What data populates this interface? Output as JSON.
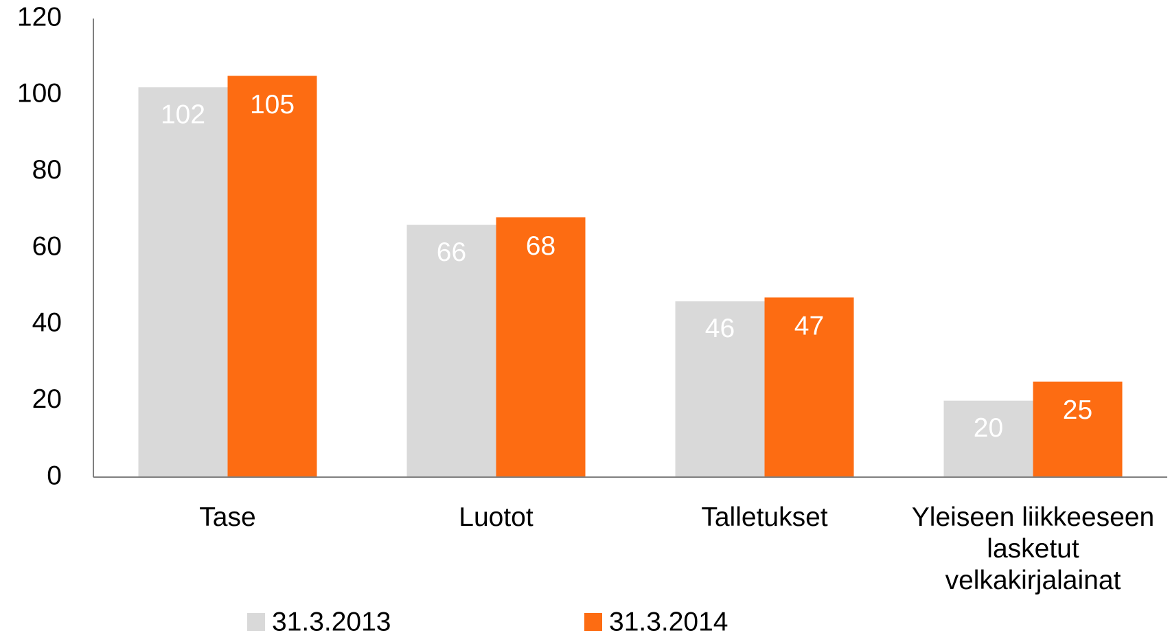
{
  "chart_data": {
    "type": "bar",
    "categories": [
      "Tase",
      "Luotot",
      "Talletukset",
      "Yleiseen liikkeeseen lasketut velkakirjalainat"
    ],
    "series": [
      {
        "name": "31.3.2013",
        "color": "#d9d9d9",
        "values": [
          102,
          66,
          46,
          20
        ]
      },
      {
        "name": "31.3.2014",
        "color": "#fd6c12",
        "values": [
          105,
          68,
          47,
          25
        ]
      }
    ],
    "ylim": [
      0,
      120
    ],
    "yticks": [
      0,
      20,
      40,
      60,
      80,
      100,
      120
    ],
    "grid": false,
    "legend": "bottom"
  }
}
